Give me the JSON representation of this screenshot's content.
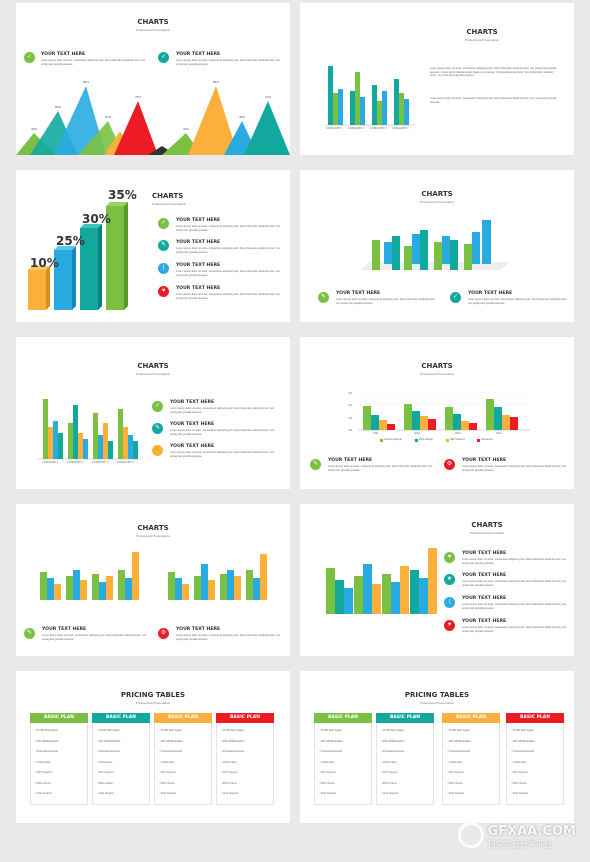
{
  "heading_charts": "CHARTS",
  "heading_pricing": "PRICING TABLES",
  "subtitle": "Professional Presentation",
  "your_text": "YOUR TEXT HERE",
  "lorem_short": "Lorem ipsum dolor sit amet, consectetur adipiscing elit. Nunc bibendum eleifend tortor, non porta justo gravida posuere.",
  "lorem_long": "Lorem ipsum dolor sit amet, consectetur adipiscing elit. Nunc bibendum eleifend tortor, non porta justo gravida posuere. Lorem iacili molestie ornare ligula ut eu laoreet. Ut phasellus amet tortor. Nunc bibendum eleifend tortor, non porta justo gravida posuere.",
  "colors": {
    "green": "#7ac143",
    "teal": "#13a89e",
    "blue": "#29abe2",
    "yellow": "#fbb03b",
    "red": "#ed1c24"
  },
  "percents": [
    "10%",
    "25%",
    "30%",
    "35%"
  ],
  "categories": [
    "CATEGORY 1",
    "CATEGORY 2",
    "CATEGORY 3",
    "CATEGORY 4"
  ],
  "years": [
    "2011",
    "2012",
    "2013",
    "2014"
  ],
  "legend_dev": [
    "Graphic Design",
    "Web Design",
    "SEO Analyst",
    "Developer"
  ],
  "legend_series": [
    "Series 1",
    "Series 2",
    "Series 3"
  ],
  "pricing": {
    "plan_label": "BASIC PLAN",
    "items": [
      "20 GB Disk Space",
      "200 GB Bandwidth",
      "30 Email Accounts",
      "10 Domains",
      "24/7 Support",
      "99% Uptime",
      "Chat Support"
    ]
  },
  "watermark": "GFXAA.COM",
  "watermark_sub": "顶尖资源分享平台",
  "chart_data": [
    {
      "type": "area",
      "values": [
        40,
        60,
        85,
        50,
        76,
        30,
        20,
        34,
        85,
        45,
        72
      ],
      "labels": [
        "40%",
        "60%",
        "85%",
        "50%",
        "76%",
        "",
        "",
        "34%",
        "85%",
        "45%",
        "72%"
      ]
    },
    {
      "type": "bar",
      "categories": [
        "CATEGORY 1",
        "CATEGORY 2",
        "CATEGORY 3",
        "CATEGORY 4"
      ],
      "series": [
        {
          "values": [
            4.3,
            2.5,
            3.5,
            4.5
          ]
        },
        {
          "values": [
            2.4,
            4.4,
            1.8,
            2.8
          ]
        },
        {
          "values": [
            2,
            2,
            3,
            5
          ]
        }
      ]
    },
    {
      "type": "bar",
      "categories": [
        "2011",
        "2012",
        "2013",
        "2014"
      ],
      "series": [
        {
          "name": "Graphic Design",
          "values": [
            48,
            52,
            45,
            62
          ]
        },
        {
          "name": "Web Design",
          "values": [
            30,
            38,
            32,
            45
          ]
        },
        {
          "name": "SEO Analyst",
          "values": [
            20,
            28,
            18,
            30
          ]
        },
        {
          "name": "Developer",
          "values": [
            12,
            22,
            14,
            26
          ]
        }
      ],
      "ylim": [
        0,
        80
      ]
    }
  ]
}
